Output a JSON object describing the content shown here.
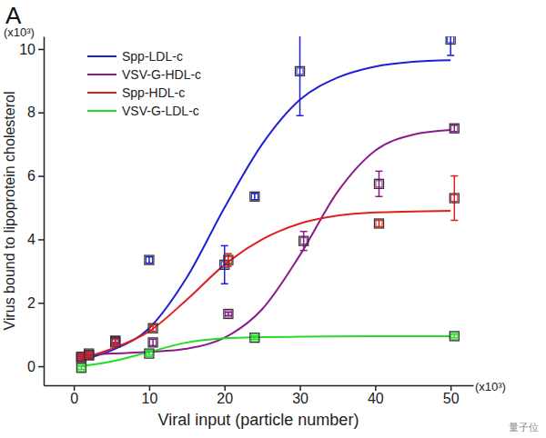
{
  "chart_data": {
    "type": "line",
    "title": "A",
    "x_label": "Viral input (particle number)",
    "y_label": "Virus bound to lipoprotein cholesterol",
    "annotations": [
      "(x10³)",
      "(x10³)",
      "量子位"
    ],
    "xlim": [
      -4,
      53
    ],
    "ylim": [
      -0.6,
      10.4
    ],
    "xticks": [
      0,
      10,
      20,
      30,
      40,
      50
    ],
    "yticks": [
      0,
      2,
      4,
      6,
      8,
      10
    ],
    "grid": false,
    "legend": "upper left",
    "marker": "square",
    "series": [
      {
        "name": "Spp-LDL-c",
        "color": "#1f1fd6",
        "x": [
          1,
          5,
          10,
          15,
          20,
          25,
          30,
          35,
          40,
          45,
          50
        ],
        "values": [
          0.2,
          0.5,
          1.2,
          2.8,
          5.0,
          7.0,
          8.4,
          9.1,
          9.45,
          9.6,
          9.65
        ],
        "points": {
          "x": [
            1,
            2,
            5.5,
            10,
            20,
            24,
            30,
            50
          ],
          "values": [
            0.3,
            0.35,
            0.8,
            3.35,
            3.2,
            5.35,
            9.3,
            10.3
          ],
          "error": [
            0.05,
            0.05,
            0.05,
            0.1,
            0.6,
            0.1,
            1.4,
            0.5
          ]
        }
      },
      {
        "name": "VSV-G-HDL-c",
        "color": "#8b1a8b",
        "x": [
          1,
          5,
          10,
          15,
          20,
          25,
          30,
          35,
          40,
          45,
          50
        ],
        "values": [
          0.35,
          0.4,
          0.45,
          0.55,
          0.9,
          1.8,
          3.5,
          5.5,
          6.8,
          7.3,
          7.45
        ],
        "points": {
          "x": [
            1,
            2,
            5.5,
            10.5,
            20.5,
            30.5,
            40.5,
            50.5
          ],
          "values": [
            0.25,
            0.4,
            0.8,
            0.75,
            1.65,
            3.95,
            5.75,
            7.5
          ],
          "error": [
            0.05,
            0.05,
            0.05,
            0.1,
            0.05,
            0.3,
            0.4,
            0.1
          ]
        }
      },
      {
        "name": "Spp-HDL-c",
        "color": "#e0201b",
        "x": [
          1,
          5,
          10,
          15,
          20,
          25,
          30,
          35,
          40,
          45,
          50
        ],
        "values": [
          0.25,
          0.55,
          1.1,
          2.1,
          3.2,
          4.0,
          4.5,
          4.75,
          4.85,
          4.88,
          4.9
        ],
        "points": {
          "x": [
            1,
            2,
            5.5,
            10.5,
            20.5,
            40.5,
            50.5
          ],
          "values": [
            0.3,
            0.35,
            0.75,
            1.2,
            3.35,
            4.5,
            5.3
          ],
          "error": [
            0.05,
            0.05,
            0.1,
            0.1,
            0.2,
            0.1,
            0.7
          ]
        }
      },
      {
        "name": "VSV-G-LDL-c",
        "color": "#22dd22",
        "x": [
          1,
          5,
          10,
          15,
          20,
          25,
          30,
          40,
          50
        ],
        "values": [
          0,
          0.15,
          0.45,
          0.75,
          0.88,
          0.92,
          0.93,
          0.95,
          0.95
        ],
        "points": {
          "x": [
            1,
            10,
            24,
            50.5
          ],
          "values": [
            -0.05,
            0.4,
            0.9,
            0.95
          ],
          "error": [
            0.05,
            0.05,
            0.05,
            0.05
          ]
        }
      }
    ]
  }
}
